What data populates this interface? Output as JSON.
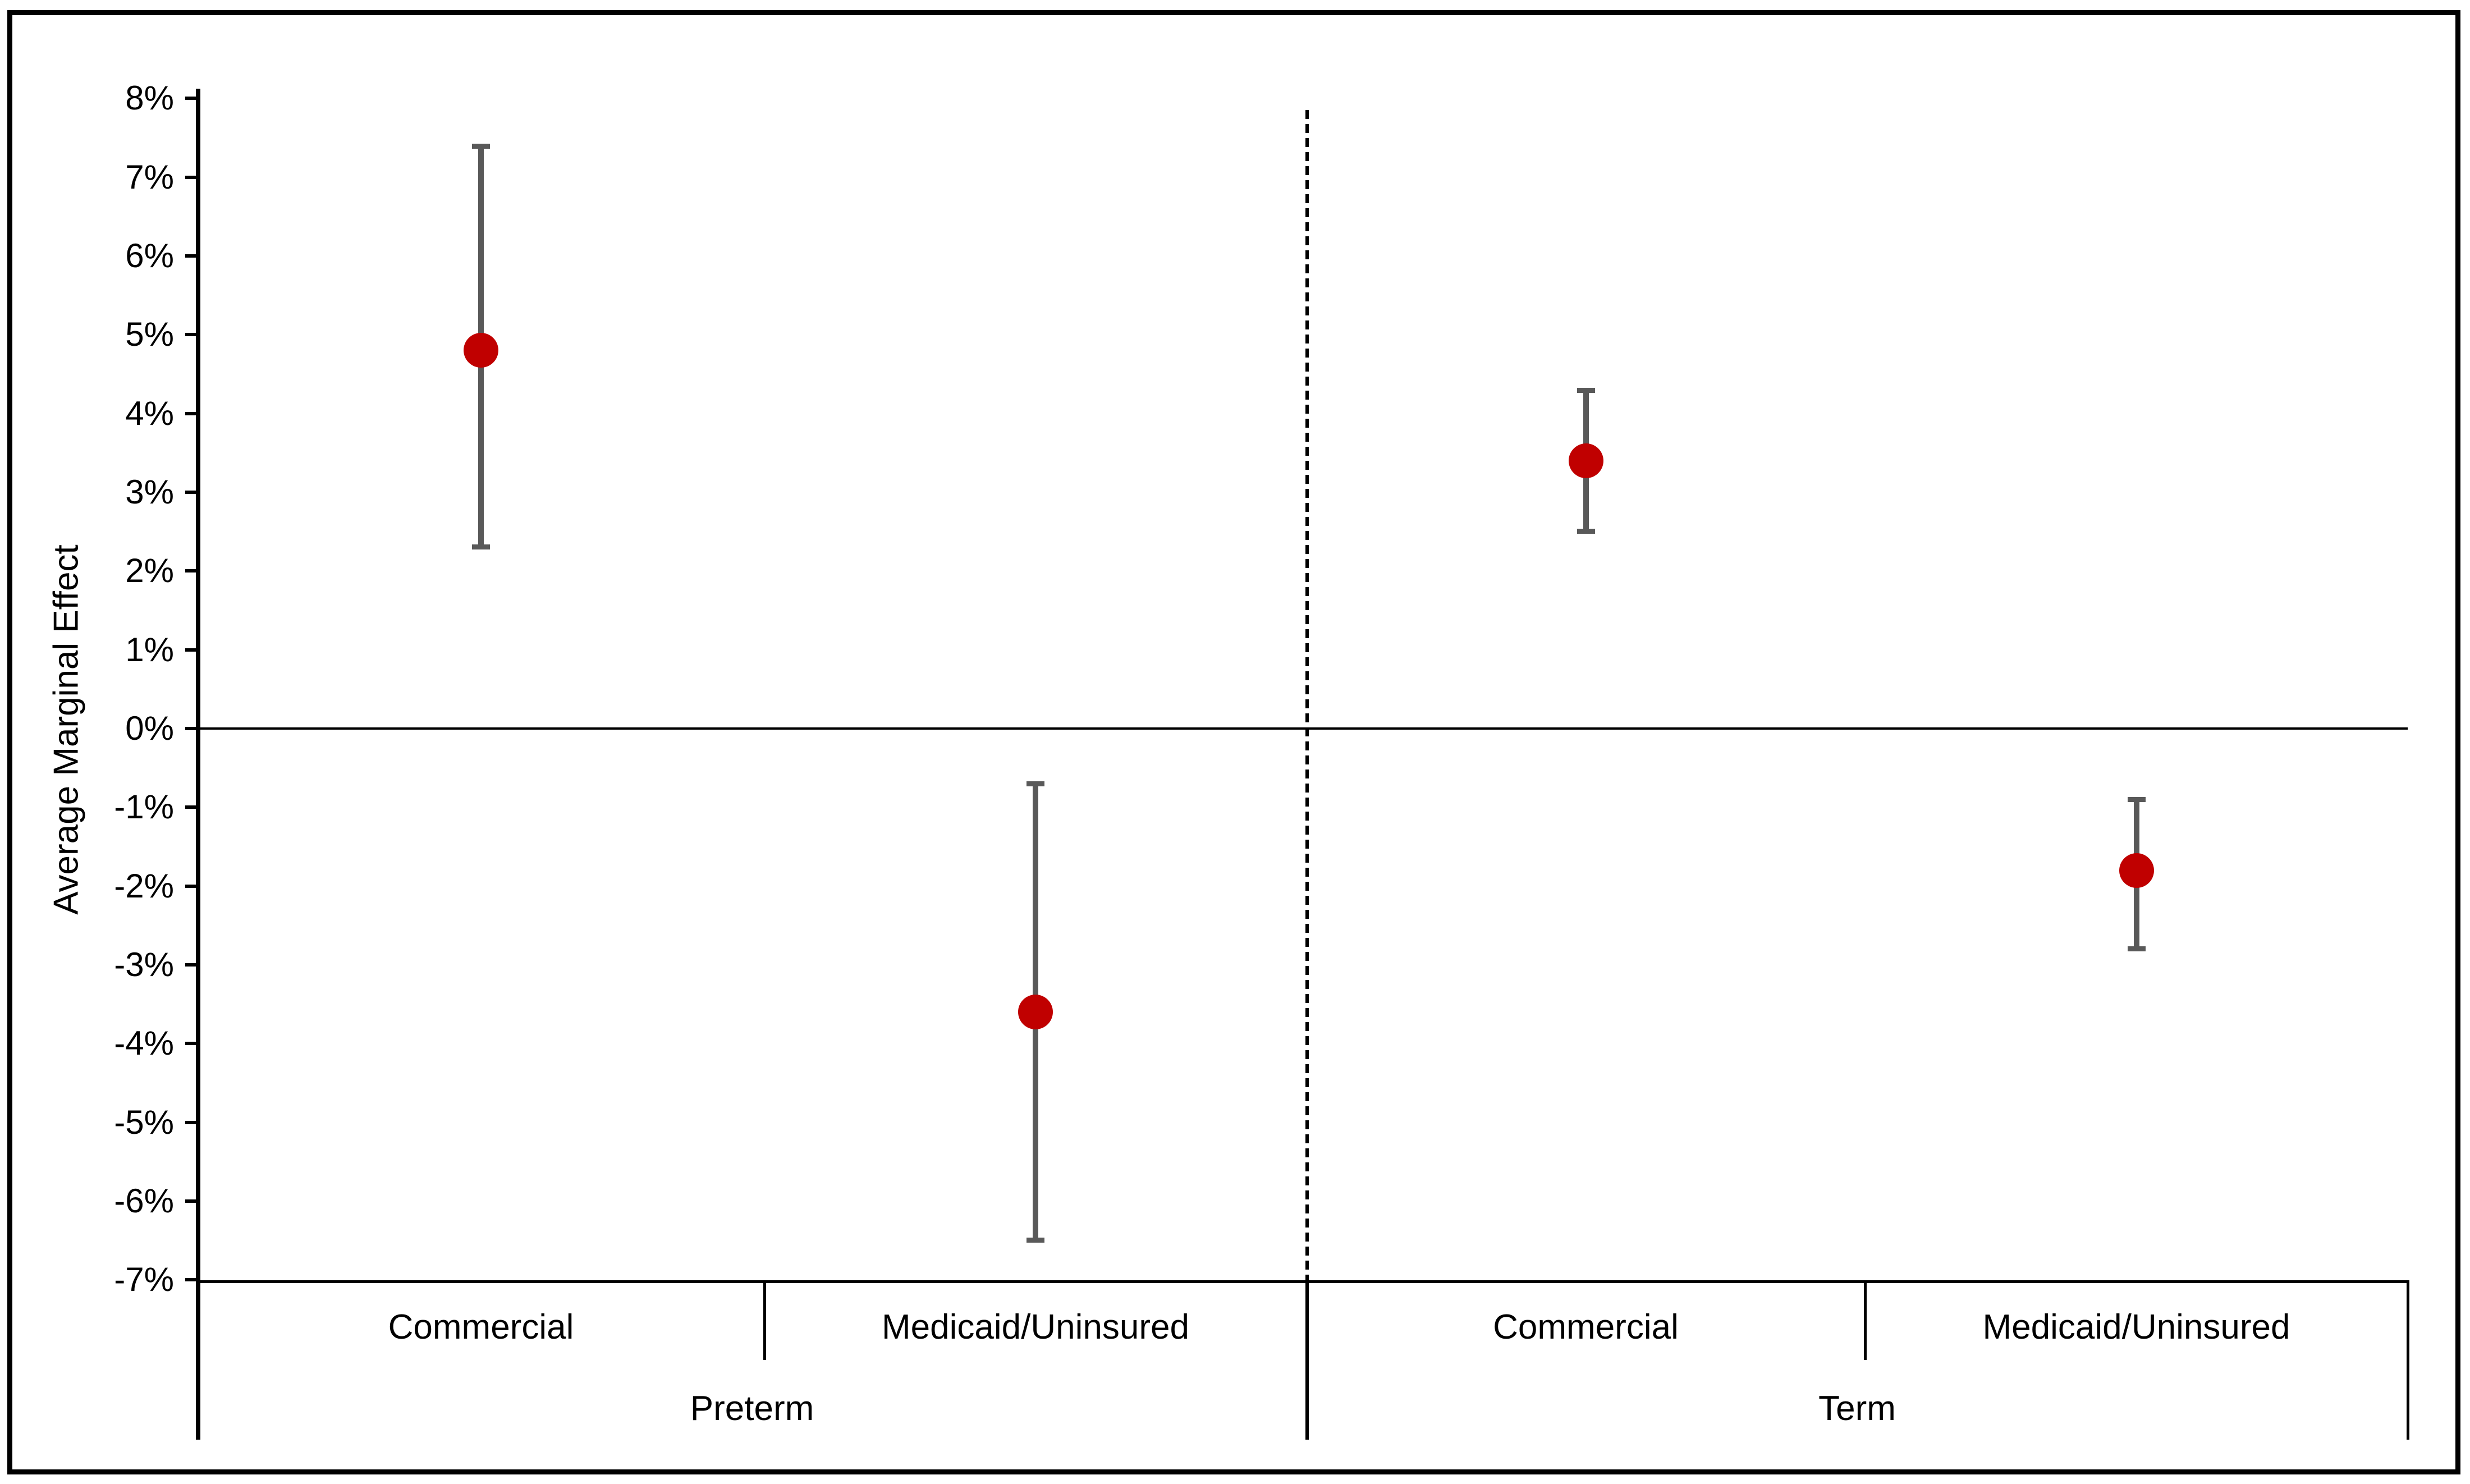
{
  "chart_data": {
    "type": "scatter",
    "subtype": "point-estimates-with-error-bars",
    "title": "",
    "ylabel": "Average Marginal Effect",
    "xlabel": "",
    "y_axis": {
      "unit": "percent",
      "min": -7,
      "max": 8,
      "step": 1,
      "tick_labels": [
        "8%",
        "7%",
        "6%",
        "5%",
        "4%",
        "3%",
        "2%",
        "1%",
        "0%",
        "-1%",
        "-2%",
        "-3%",
        "-4%",
        "-5%",
        "-6%",
        "-7%"
      ]
    },
    "grid": "zero-line-only",
    "legend": null,
    "groups": [
      {
        "label": "Preterm",
        "points": [
          {
            "category": "Commercial",
            "mean": 4.8,
            "ci_low": 2.3,
            "ci_high": 7.4
          },
          {
            "category": "Medicaid/Uninsured",
            "mean": -3.6,
            "ci_low": -6.5,
            "ci_high": -0.7
          }
        ]
      },
      {
        "label": "Term",
        "points": [
          {
            "category": "Commercial",
            "mean": 3.4,
            "ci_low": 2.5,
            "ci_high": 4.3
          },
          {
            "category": "Medicaid/Uninsured",
            "mean": -1.8,
            "ci_low": -2.8,
            "ci_high": -0.9
          }
        ]
      }
    ],
    "colors": {
      "marker": "#c00000",
      "error_bar": "#595959",
      "axis": "#000000",
      "background": "#ffffff"
    }
  }
}
